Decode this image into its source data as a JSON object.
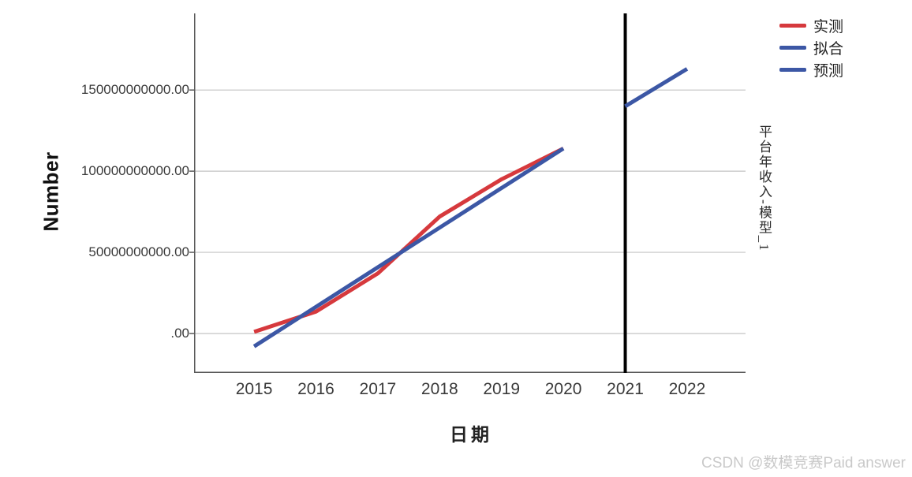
{
  "page": {
    "watermark": "CSDN @数模竞赛Paid answer"
  },
  "chart_data": {
    "type": "line",
    "title": "",
    "xlabel": "日期",
    "ylabel": "Number",
    "right_label": "平台年收入-模型_1",
    "x_ticks": [
      2015,
      2016,
      2017,
      2018,
      2019,
      2020,
      2021,
      2022
    ],
    "y_ticks": [
      {
        "value": 0,
        "label": ".00"
      },
      {
        "value": 50000000000,
        "label": "50000000000.00"
      },
      {
        "value": 100000000000,
        "label": "100000000000.00"
      },
      {
        "value": 150000000000,
        "label": "150000000000.00"
      }
    ],
    "xlim": [
      2014.03,
      2022.97
    ],
    "ylim": [
      -24300000000,
      197200000000
    ],
    "grid": true,
    "legend_position": "top-right",
    "reference_line": {
      "x": 2021,
      "color": "#000000",
      "width": 4
    },
    "series": [
      {
        "key": "observed",
        "name": "实测",
        "color": "#d6393d",
        "x": [
          2015,
          2016,
          2017,
          2018,
          2019,
          2020
        ],
        "y": [
          1000000000,
          13500000000,
          37000000000,
          72000000000,
          95000000000,
          114000000000
        ]
      },
      {
        "key": "fitted",
        "name": "拟合",
        "color": "#3c57a5",
        "x": [
          2015,
          2016,
          2017,
          2018,
          2019,
          2020
        ],
        "y": [
          -8000000000,
          16400000000,
          40800000000,
          65200000000,
          89600000000,
          114000000000
        ]
      },
      {
        "key": "forecast",
        "name": "预测",
        "color": "#3c57a5",
        "x": [
          2021,
          2022
        ],
        "y": [
          140000000000,
          163000000000
        ]
      }
    ],
    "legend": [
      {
        "key": "observed",
        "label": "实测",
        "color": "#d6393d"
      },
      {
        "key": "fitted",
        "label": "拟合",
        "color": "#3c57a5"
      },
      {
        "key": "forecast",
        "label": "预测",
        "color": "#3c57a5"
      }
    ],
    "colors": {
      "grid": "#c3c3c3",
      "axis": "#5a5a5a",
      "tick_text": "#3a3a3a",
      "watermark": "#c9c9c9"
    }
  }
}
